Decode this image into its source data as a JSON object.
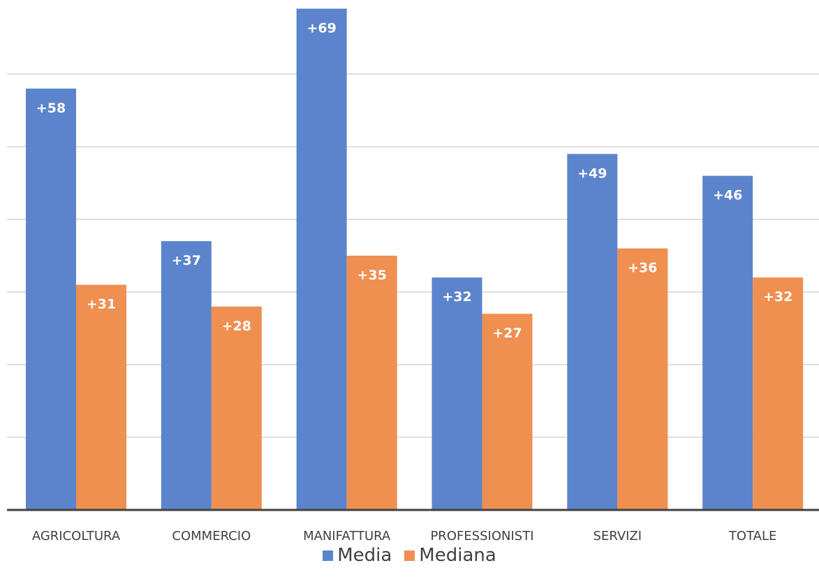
{
  "chart_data": {
    "type": "bar",
    "categories": [
      "AGRICOLTURA",
      "COMMERCIO",
      "MANIFATTURA",
      "PROFESSIONISTI",
      "SERVIZI",
      "TOTALE"
    ],
    "series": [
      {
        "name": "Media",
        "color": "#5b84cc",
        "values": [
          58,
          37,
          69,
          32,
          49,
          46
        ],
        "labels": [
          "+58",
          "+37",
          "+69",
          "+32",
          "+49",
          "+46"
        ]
      },
      {
        "name": "Mediana",
        "color": "#ef8f50",
        "values": [
          31,
          28,
          35,
          27,
          36,
          32
        ],
        "labels": [
          "+31",
          "+28",
          "+35",
          "+27",
          "+36",
          "+32"
        ]
      }
    ],
    "ylim": [
      0,
      70
    ],
    "y_gridlines": [
      10,
      20,
      30,
      40,
      50,
      60
    ],
    "grid": true,
    "legend_position": "bottom-center",
    "title": "",
    "xlabel": "",
    "ylabel": ""
  }
}
